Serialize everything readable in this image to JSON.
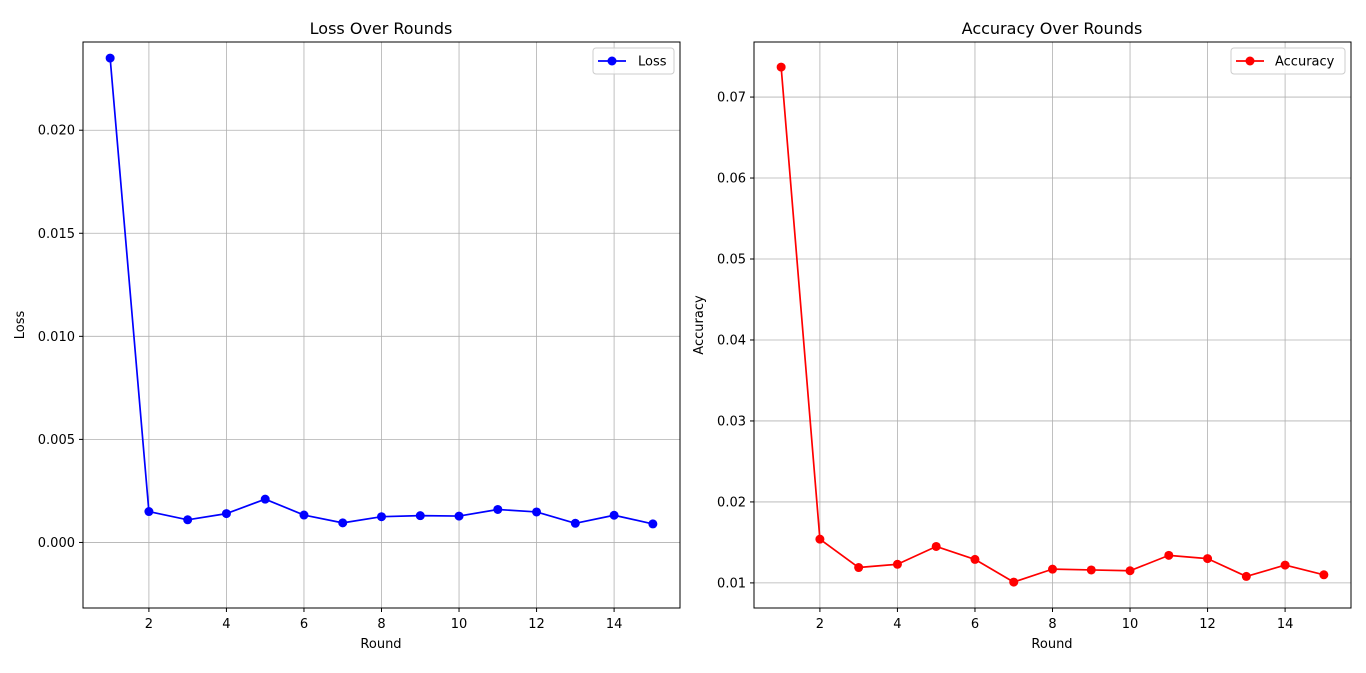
{
  "chart_data": [
    {
      "type": "line",
      "title": "Loss Over Rounds",
      "xlabel": "Round",
      "ylabel": "Loss",
      "xlim": [
        0.3,
        15.7
      ],
      "ylim": [
        -0.00318,
        0.02428
      ],
      "xticks": [
        2,
        4,
        6,
        8,
        10,
        12,
        14
      ],
      "xtick_labels": [
        "2",
        "4",
        "6",
        "8",
        "10",
        "12",
        "14"
      ],
      "yticks": [
        0.0,
        0.005,
        0.01,
        0.015,
        0.02
      ],
      "ytick_labels": [
        "0.000",
        "0.005",
        "0.010",
        "0.015",
        "0.020"
      ],
      "grid": true,
      "legend_position": "top-right",
      "series": [
        {
          "name": "Loss",
          "color": "#0000ff",
          "marker": "circle",
          "x": [
            1,
            2,
            3,
            4,
            5,
            6,
            7,
            8,
            9,
            10,
            11,
            12,
            13,
            14,
            15
          ],
          "y": [
            0.0235,
            0.0015,
            0.0011,
            0.0014,
            0.0021,
            0.00133,
            0.00095,
            0.00125,
            0.0013,
            0.00128,
            0.0016,
            0.00148,
            0.00093,
            0.00132,
            0.0009
          ]
        }
      ]
    },
    {
      "type": "line",
      "title": "Accuracy Over Rounds",
      "xlabel": "Round",
      "ylabel": "Accuracy",
      "xlim": [
        0.3,
        15.7
      ],
      "ylim": [
        0.0069,
        0.0768
      ],
      "xticks": [
        2,
        4,
        6,
        8,
        10,
        12,
        14
      ],
      "xtick_labels": [
        "2",
        "4",
        "6",
        "8",
        "10",
        "12",
        "14"
      ],
      "yticks": [
        0.01,
        0.02,
        0.03,
        0.04,
        0.05,
        0.06,
        0.07
      ],
      "ytick_labels": [
        "0.01",
        "0.02",
        "0.03",
        "0.04",
        "0.05",
        "0.06",
        "0.07"
      ],
      "grid": true,
      "legend_position": "top-right",
      "series": [
        {
          "name": "Accuracy",
          "color": "#ff0000",
          "marker": "circle",
          "x": [
            1,
            2,
            3,
            4,
            5,
            6,
            7,
            8,
            9,
            10,
            11,
            12,
            13,
            14,
            15
          ],
          "y": [
            0.0737,
            0.0154,
            0.0119,
            0.0123,
            0.0145,
            0.0129,
            0.0101,
            0.0117,
            0.0116,
            0.0115,
            0.0134,
            0.013,
            0.0108,
            0.0122,
            0.011
          ]
        }
      ]
    }
  ]
}
